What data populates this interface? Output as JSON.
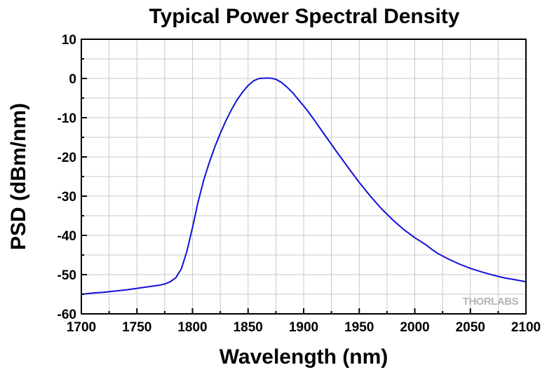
{
  "chart_data": {
    "type": "line",
    "title": "Typical Power Spectral Density",
    "xlabel": "Wavelength (nm)",
    "ylabel": "PSD (dBm/nm)",
    "xlim": [
      1700,
      2100
    ],
    "ylim": [
      -60,
      10
    ],
    "xticks": [
      1700,
      1750,
      1800,
      1850,
      1900,
      1950,
      2000,
      2050,
      2100
    ],
    "yticks": [
      10,
      0,
      -10,
      -20,
      -30,
      -40,
      -50,
      -60
    ],
    "grid": true,
    "series": [
      {
        "name": "PSD",
        "color": "#1010d8",
        "x": [
          1700,
          1710,
          1720,
          1730,
          1740,
          1750,
          1760,
          1770,
          1775,
          1780,
          1785,
          1790,
          1795,
          1800,
          1805,
          1810,
          1815,
          1820,
          1825,
          1830,
          1835,
          1840,
          1845,
          1850,
          1855,
          1860,
          1865,
          1870,
          1875,
          1880,
          1885,
          1890,
          1895,
          1900,
          1905,
          1910,
          1920,
          1930,
          1940,
          1950,
          1960,
          1970,
          1980,
          1990,
          2000,
          2010,
          2015,
          2020,
          2030,
          2040,
          2050,
          2060,
          2070,
          2080,
          2090,
          2100
        ],
        "y": [
          -55,
          -54.7,
          -54.5,
          -54.2,
          -53.9,
          -53.5,
          -53.1,
          -52.7,
          -52.4,
          -51.8,
          -50.8,
          -48.5,
          -44,
          -38,
          -31.5,
          -26,
          -21.5,
          -17.5,
          -14,
          -10.8,
          -8,
          -5.5,
          -3.5,
          -1.8,
          -0.6,
          0,
          0.1,
          0.1,
          -0.2,
          -1,
          -2.2,
          -3.6,
          -5.3,
          -7,
          -8.8,
          -10.8,
          -14.8,
          -18.8,
          -22.7,
          -26.5,
          -30,
          -33.2,
          -36,
          -38.5,
          -40.6,
          -42.4,
          -43.5,
          -44.5,
          -46,
          -47.3,
          -48.4,
          -49.3,
          -50.1,
          -50.8,
          -51.3,
          -51.8
        ]
      }
    ]
  },
  "watermark": {
    "text": "THORLABS"
  }
}
